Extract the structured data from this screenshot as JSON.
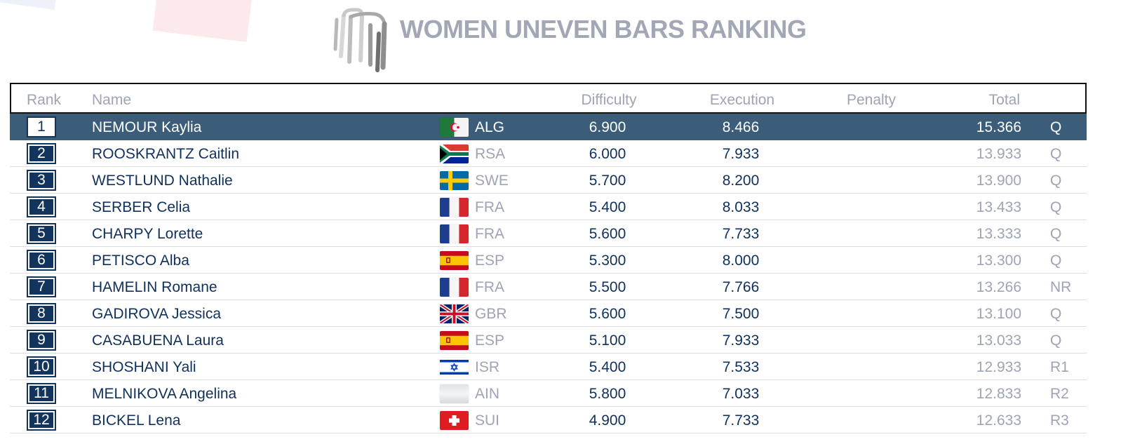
{
  "page": {
    "title": "WOMEN UNEVEN BARS RANKING",
    "icon": "uneven-bars-icon"
  },
  "columns": {
    "rank": "Rank",
    "name": "Name",
    "difficulty": "Difficulty",
    "execution": "Execution",
    "penalty": "Penalty",
    "total": "Total"
  },
  "colors": {
    "header_text": "#a2a7b6",
    "highlight_row": "#3c5d79",
    "rank_box": "#12345d",
    "name_text": "#10305a",
    "muted_text": "#9ea4b4"
  },
  "rows": [
    {
      "rank": "1",
      "name": "NEMOUR Kaylia",
      "nation": "ALG",
      "flag": "alg",
      "difficulty": "6.900",
      "execution": "8.466",
      "penalty": "",
      "total": "15.366",
      "qualification": "Q"
    },
    {
      "rank": "2",
      "name": "ROOSKRANTZ Caitlin",
      "nation": "RSA",
      "flag": "rsa",
      "difficulty": "6.000",
      "execution": "7.933",
      "penalty": "",
      "total": "13.933",
      "qualification": "Q"
    },
    {
      "rank": "3",
      "name": "WESTLUND Nathalie",
      "nation": "SWE",
      "flag": "swe",
      "difficulty": "5.700",
      "execution": "8.200",
      "penalty": "",
      "total": "13.900",
      "qualification": "Q"
    },
    {
      "rank": "4",
      "name": "SERBER Celia",
      "nation": "FRA",
      "flag": "fra",
      "difficulty": "5.400",
      "execution": "8.033",
      "penalty": "",
      "total": "13.433",
      "qualification": "Q"
    },
    {
      "rank": "5",
      "name": "CHARPY Lorette",
      "nation": "FRA",
      "flag": "fra",
      "difficulty": "5.600",
      "execution": "7.733",
      "penalty": "",
      "total": "13.333",
      "qualification": "Q"
    },
    {
      "rank": "6",
      "name": "PETISCO Alba",
      "nation": "ESP",
      "flag": "esp",
      "difficulty": "5.300",
      "execution": "8.000",
      "penalty": "",
      "total": "13.300",
      "qualification": "Q"
    },
    {
      "rank": "7",
      "name": "HAMELIN Romane",
      "nation": "FRA",
      "flag": "fra",
      "difficulty": "5.500",
      "execution": "7.766",
      "penalty": "",
      "total": "13.266",
      "qualification": "NR"
    },
    {
      "rank": "8",
      "name": "GADIROVA Jessica",
      "nation": "GBR",
      "flag": "gbr",
      "difficulty": "5.600",
      "execution": "7.500",
      "penalty": "",
      "total": "13.100",
      "qualification": "Q"
    },
    {
      "rank": "9",
      "name": "CASABUENA Laura",
      "nation": "ESP",
      "flag": "esp",
      "difficulty": "5.100",
      "execution": "7.933",
      "penalty": "",
      "total": "13.033",
      "qualification": "Q"
    },
    {
      "rank": "10",
      "name": "SHOSHANI Yali",
      "nation": "ISR",
      "flag": "isr",
      "difficulty": "5.400",
      "execution": "7.533",
      "penalty": "",
      "total": "12.933",
      "qualification": "R1"
    },
    {
      "rank": "11",
      "name": "MELNIKOVA Angelina",
      "nation": "AIN",
      "flag": "ain",
      "difficulty": "5.800",
      "execution": "7.033",
      "penalty": "",
      "total": "12.833",
      "qualification": "R2"
    },
    {
      "rank": "12",
      "name": "BICKEL Lena",
      "nation": "SUI",
      "flag": "sui",
      "difficulty": "4.900",
      "execution": "7.733",
      "penalty": "",
      "total": "12.633",
      "qualification": "R3"
    }
  ]
}
